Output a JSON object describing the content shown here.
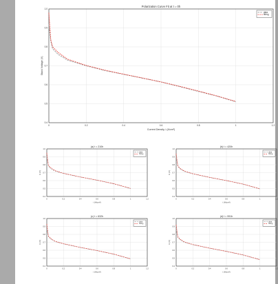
{
  "colors": {
    "data_series": "#9a9a9a",
    "fitting_series": "#e8332a",
    "page_background": "#ffffff",
    "viewer_background": "#a3a3a3"
  },
  "chart_data": [
    {
      "type": "line",
      "title": "Polarization Curve Fit at t = 0h",
      "xlabel": "Current Density, i (A/cm²)",
      "ylabel": "Stack Voltage (V)",
      "xlim": [
        0,
        1.2
      ],
      "ylim": [
        0.4,
        1.0
      ],
      "xticks": [
        "0",
        "0.2",
        "0.4",
        "0.6",
        "0.8",
        "1",
        "1.2"
      ],
      "yticks": [
        "0.4",
        "0.5",
        "0.6",
        "0.7",
        "0.8",
        "0.9",
        "1.0"
      ],
      "grid": true,
      "legend_position": "top-right",
      "series": [
        {
          "name": "data",
          "x": [
            0,
            0.01,
            0.02,
            0.05,
            0.1,
            0.2,
            0.3,
            0.4,
            0.5,
            0.6,
            0.7,
            0.8,
            0.9,
            1.0
          ],
          "y": [
            0.92,
            0.83,
            0.79,
            0.76,
            0.73,
            0.7,
            0.675,
            0.655,
            0.635,
            0.615,
            0.59,
            0.565,
            0.54,
            0.51
          ]
        },
        {
          "name": "fitting",
          "x": [
            0,
            0.01,
            0.02,
            0.05,
            0.1,
            0.2,
            0.3,
            0.4,
            0.5,
            0.6,
            0.7,
            0.8,
            0.9,
            1.0
          ],
          "y": [
            0.98,
            0.84,
            0.8,
            0.77,
            0.735,
            0.702,
            0.677,
            0.656,
            0.636,
            0.615,
            0.592,
            0.567,
            0.541,
            0.512
          ]
        }
      ]
    },
    {
      "type": "line",
      "title": "(a) t = 210h",
      "xlabel": "i (A/cm²)",
      "ylabel": "U (V)",
      "xlim": [
        0,
        1.2
      ],
      "ylim": [
        0.4,
        1.0
      ],
      "xticks": [
        "0",
        "0.2",
        "0.4",
        "0.6",
        "0.8",
        "1",
        "1.2"
      ],
      "yticks": [
        "0.4",
        "0.5",
        "0.6",
        "0.7",
        "0.8",
        "0.9",
        "1.0"
      ],
      "grid": true,
      "legend_position": "top-right",
      "series": [
        {
          "name": "data",
          "x": [
            0,
            0.02,
            0.05,
            0.1,
            0.2,
            0.4,
            0.6,
            0.8,
            1.0
          ],
          "y": [
            0.9,
            0.78,
            0.75,
            0.72,
            0.69,
            0.645,
            0.605,
            0.56,
            0.5
          ]
        },
        {
          "name": "fitting",
          "x": [
            0,
            0.02,
            0.05,
            0.1,
            0.2,
            0.4,
            0.6,
            0.8,
            1.0
          ],
          "y": [
            0.95,
            0.79,
            0.76,
            0.725,
            0.692,
            0.646,
            0.606,
            0.561,
            0.502
          ]
        }
      ]
    },
    {
      "type": "line",
      "title": "(b) t = 420h",
      "xlabel": "i (A/cm²)",
      "ylabel": "U (V)",
      "xlim": [
        0,
        1.2
      ],
      "ylim": [
        0.4,
        1.0
      ],
      "xticks": [
        "0",
        "0.2",
        "0.4",
        "0.6",
        "0.8",
        "1",
        "1.2"
      ],
      "yticks": [
        "0.4",
        "0.5",
        "0.6",
        "0.7",
        "0.8",
        "0.9",
        "1.0"
      ],
      "grid": true,
      "legend_position": "top-right",
      "series": [
        {
          "name": "data",
          "x": [
            0,
            0.02,
            0.05,
            0.1,
            0.2,
            0.4,
            0.6,
            0.8,
            1.0
          ],
          "y": [
            0.9,
            0.78,
            0.745,
            0.715,
            0.685,
            0.64,
            0.6,
            0.555,
            0.495
          ]
        },
        {
          "name": "fitting",
          "x": [
            0,
            0.02,
            0.05,
            0.1,
            0.2,
            0.4,
            0.6,
            0.8,
            1.0
          ],
          "y": [
            0.94,
            0.785,
            0.752,
            0.72,
            0.687,
            0.641,
            0.601,
            0.556,
            0.497
          ]
        }
      ]
    },
    {
      "type": "line",
      "title": "(c) t = 632h",
      "xlabel": "i (A/cm²)",
      "ylabel": "U (V)",
      "xlim": [
        0,
        1.2
      ],
      "ylim": [
        0.4,
        1.0
      ],
      "xticks": [
        "0",
        "0.2",
        "0.4",
        "0.6",
        "0.8",
        "1",
        "1.2"
      ],
      "yticks": [
        "0.4",
        "0.5",
        "0.6",
        "0.7",
        "0.8",
        "0.9",
        "1.0"
      ],
      "grid": true,
      "legend_position": "top-right",
      "series": [
        {
          "name": "data",
          "x": [
            0,
            0.02,
            0.05,
            0.1,
            0.2,
            0.4,
            0.6,
            0.8,
            1.0
          ],
          "y": [
            0.88,
            0.77,
            0.74,
            0.71,
            0.68,
            0.635,
            0.595,
            0.55,
            0.49
          ]
        },
        {
          "name": "fitting",
          "x": [
            0,
            0.02,
            0.05,
            0.1,
            0.2,
            0.4,
            0.6,
            0.8,
            1.0
          ],
          "y": [
            0.93,
            0.78,
            0.745,
            0.713,
            0.682,
            0.636,
            0.596,
            0.551,
            0.492
          ]
        }
      ]
    },
    {
      "type": "line",
      "title": "(d) t = 991h",
      "xlabel": "i (A/cm²)",
      "ylabel": "U (V)",
      "xlim": [
        0,
        1.2
      ],
      "ylim": [
        0.4,
        1.0
      ],
      "xticks": [
        "0",
        "0.2",
        "0.4",
        "0.6",
        "0.8",
        "1",
        "1.2"
      ],
      "yticks": [
        "0.4",
        "0.5",
        "0.6",
        "0.7",
        "0.8",
        "0.9",
        "1.0"
      ],
      "grid": true,
      "legend_position": "top-right",
      "series": [
        {
          "name": "data",
          "x": [
            0,
            0.02,
            0.05,
            0.1,
            0.2,
            0.4,
            0.6,
            0.8,
            1.0
          ],
          "y": [
            0.87,
            0.76,
            0.73,
            0.7,
            0.67,
            0.625,
            0.585,
            0.54,
            0.48
          ]
        },
        {
          "name": "fitting",
          "x": [
            0,
            0.02,
            0.05,
            0.1,
            0.2,
            0.4,
            0.6,
            0.8,
            1.0
          ],
          "y": [
            0.92,
            0.77,
            0.737,
            0.705,
            0.672,
            0.626,
            0.586,
            0.541,
            0.482
          ]
        }
      ]
    }
  ]
}
